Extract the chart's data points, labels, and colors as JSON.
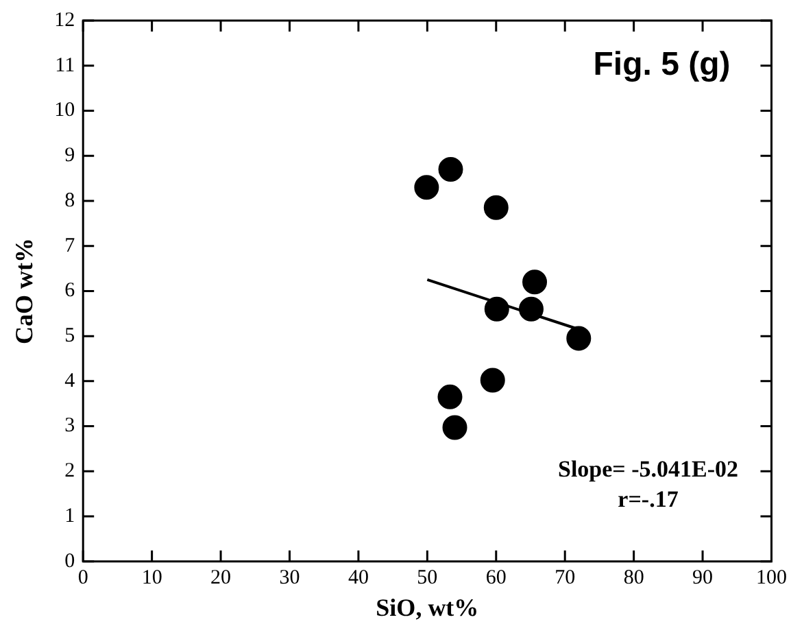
{
  "chart_data": {
    "type": "scatter",
    "title": "Fig. 5 (g)",
    "xlabel": "SiO, wt%",
    "ylabel": "CaO wt%",
    "annotations": [
      "Slope= -5.041E-02",
      "r=-.17"
    ],
    "series": [
      {
        "color": "#000000",
        "marker": "circle",
        "x": [
          49.9,
          53.4,
          60,
          65.6,
          60.1,
          65.1,
          72,
          59.5,
          53.3,
          54
        ],
        "values": [
          8.3,
          8.7,
          7.85,
          6.2,
          5.6,
          5.6,
          4.95,
          4.02,
          3.65,
          2.97
        ]
      },
      {
        "type": "line",
        "color": "#000000",
        "marker": "none",
        "line_style": "solid",
        "x": [
          50,
          72
        ],
        "values": [
          6.25,
          5.15
        ]
      }
    ],
    "xlim": [
      0,
      100
    ],
    "xticks": [
      0,
      10,
      20,
      30,
      40,
      50,
      60,
      70,
      80,
      90,
      100
    ],
    "ylim": [
      0,
      12
    ],
    "yticks": [
      0,
      1,
      2,
      3,
      4,
      5,
      6,
      7,
      8,
      9,
      10,
      11,
      12
    ],
    "grid": false,
    "legend": false
  }
}
